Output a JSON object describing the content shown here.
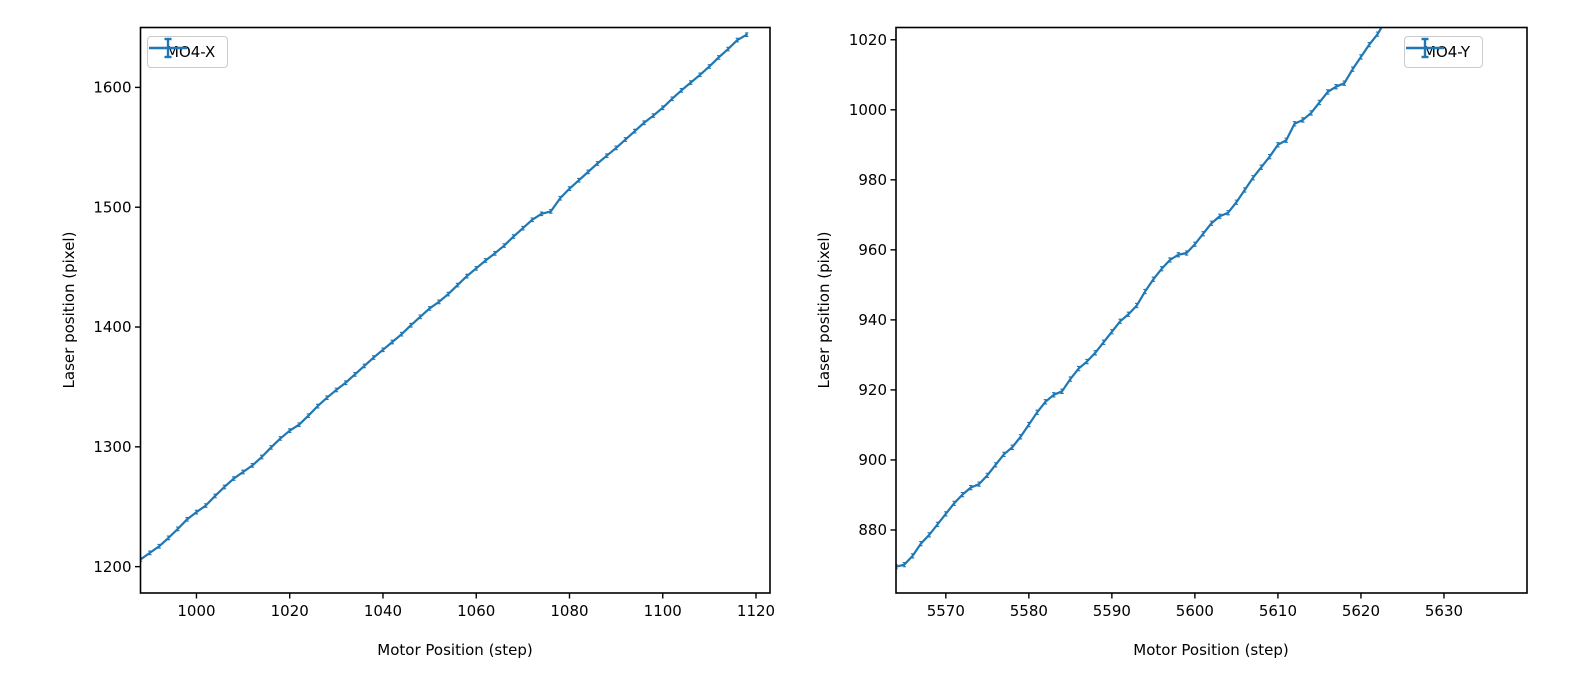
{
  "figure": {
    "background": "#ffffff",
    "axis_color": "#000000",
    "accent_color": "#1f77b4"
  },
  "chart_data": [
    {
      "id": "mo4-x",
      "type": "line",
      "title": "",
      "xlabel": "Motor Position (step)",
      "ylabel": "Laser position (pixel)",
      "xlim": [
        988,
        1123
      ],
      "ylim": [
        1178,
        1650
      ],
      "xticks": [
        1000,
        1020,
        1040,
        1060,
        1080,
        1100,
        1120
      ],
      "yticks": [
        1200,
        1300,
        1400,
        1500,
        1600
      ],
      "grid": false,
      "legend": {
        "label": "MO4-X",
        "position": "upper left"
      },
      "series": [
        {
          "name": "MO4-X",
          "color": "#1f77b4",
          "style": "errorbar-line",
          "yerr": 1.5,
          "x": [
            988,
            990,
            992,
            994,
            996,
            998,
            1000,
            1002,
            1004,
            1006,
            1008,
            1010,
            1012,
            1014,
            1016,
            1018,
            1020,
            1022,
            1024,
            1026,
            1028,
            1030,
            1032,
            1034,
            1036,
            1038,
            1040,
            1042,
            1044,
            1046,
            1048,
            1050,
            1052,
            1054,
            1056,
            1058,
            1060,
            1062,
            1064,
            1066,
            1068,
            1070,
            1072,
            1074,
            1076,
            1078,
            1080,
            1082,
            1084,
            1086,
            1088,
            1090,
            1092,
            1094,
            1096,
            1098,
            1100,
            1102,
            1104,
            1106,
            1108,
            1110,
            1112,
            1114,
            1116,
            1118
          ],
          "y": [
            1206.0,
            1211.5,
            1217.0,
            1224.0,
            1231.5,
            1239.5,
            1245.5,
            1251.0,
            1259.0,
            1266.5,
            1273.5,
            1279.0,
            1284.5,
            1291.5,
            1299.5,
            1307.0,
            1313.5,
            1318.5,
            1326.0,
            1334.0,
            1341.0,
            1347.5,
            1353.5,
            1360.5,
            1367.5,
            1374.5,
            1381.0,
            1387.5,
            1394.0,
            1401.5,
            1408.5,
            1415.5,
            1421.0,
            1427.5,
            1435.0,
            1442.5,
            1449.0,
            1455.5,
            1461.5,
            1468.0,
            1475.5,
            1482.5,
            1489.5,
            1494.5,
            1496.5,
            1507.5,
            1515.5,
            1522.5,
            1529.5,
            1536.5,
            1543.0,
            1549.5,
            1556.5,
            1563.5,
            1570.5,
            1576.5,
            1583.0,
            1590.5,
            1597.5,
            1604.0,
            1610.5,
            1617.5,
            1625.0,
            1632.0,
            1639.5,
            1644.0
          ]
        }
      ]
    },
    {
      "id": "mo4-y",
      "type": "line",
      "title": "",
      "xlabel": "Motor Position (step)",
      "ylabel": "Laser position (pixel)",
      "xlim": [
        5564,
        5640
      ],
      "ylim": [
        862,
        1023.5
      ],
      "xticks": [
        5570,
        5580,
        5590,
        5600,
        5610,
        5620,
        5630
      ],
      "yticks": [
        880,
        900,
        920,
        940,
        960,
        980,
        1000,
        1020
      ],
      "grid": false,
      "legend": {
        "label": "MO4-Y",
        "position": "upper right"
      },
      "series": [
        {
          "name": "MO4-Y",
          "color": "#1f77b4",
          "style": "errorbar-line",
          "yerr": 0.6,
          "x": [
            5564,
            5565,
            5566,
            5567,
            5568,
            5569,
            5570,
            5571,
            5572,
            5573,
            5574,
            5575,
            5576,
            5577,
            5578,
            5579,
            5580,
            5581,
            5582,
            5583,
            5584,
            5585,
            5586,
            5587,
            5588,
            5589,
            5590,
            5591,
            5592,
            5593,
            5594,
            5595,
            5596,
            5597,
            5598,
            5599,
            5600,
            5601,
            5602,
            5603,
            5604,
            5605,
            5606,
            5607,
            5608,
            5609,
            5610,
            5611,
            5612,
            5613,
            5614,
            5615,
            5616,
            5617,
            5618,
            5619,
            5620,
            5621,
            5622,
            5623
          ],
          "y": [
            869.5,
            870.1,
            872.6,
            876.1,
            878.6,
            881.6,
            884.6,
            887.6,
            890.1,
            892.1,
            893.1,
            895.6,
            898.6,
            901.6,
            903.6,
            906.6,
            910.1,
            913.6,
            916.6,
            918.6,
            919.6,
            923.1,
            926.1,
            928.1,
            930.6,
            933.6,
            936.6,
            939.6,
            941.6,
            944.1,
            948.1,
            951.6,
            954.6,
            957.1,
            958.6,
            959.1,
            961.6,
            964.6,
            967.6,
            969.6,
            970.6,
            973.6,
            977.1,
            980.6,
            983.6,
            986.6,
            990.0,
            991.3,
            996.0,
            997.1,
            999.1,
            1002.1,
            1005.1,
            1006.6,
            1007.6,
            1011.6,
            1015.1,
            1018.6,
            1021.6,
            1025.6
          ]
        }
      ]
    }
  ]
}
